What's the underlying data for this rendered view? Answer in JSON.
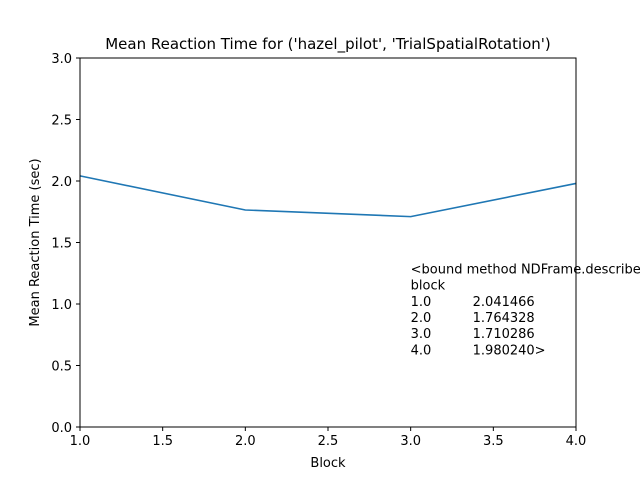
{
  "chart_data": {
    "type": "line",
    "title": "Mean Reaction Time for ('hazel_pilot', 'TrialSpatialRotation')",
    "xlabel": "Block",
    "ylabel": "Mean Reaction Time (sec)",
    "xlim": [
      1.0,
      4.0
    ],
    "ylim": [
      0.0,
      3.0
    ],
    "xticks": [
      "1.0",
      "1.5",
      "2.0",
      "2.5",
      "3.0",
      "3.5",
      "4.0"
    ],
    "yticks": [
      "0.0",
      "0.5",
      "1.0",
      "1.5",
      "2.0",
      "2.5",
      "3.0"
    ],
    "grid": false,
    "series": [
      {
        "x": [
          1.0,
          2.0,
          3.0,
          4.0
        ],
        "y": [
          2.041466,
          1.764328,
          1.710286,
          1.98024
        ],
        "color": "#1f77b4"
      }
    ],
    "annotation": {
      "x": 3.0,
      "y": 1.2,
      "lines": [
        {
          "left": "<bound method NDFrame.describe of",
          "right": ""
        },
        {
          "left": "block",
          "right": ""
        },
        {
          "left": "1.0",
          "right": "2.041466"
        },
        {
          "left": "2.0",
          "right": "1.764328"
        },
        {
          "left": "3.0",
          "right": "1.710286"
        },
        {
          "left": "4.0",
          "right": "1.980240>"
        }
      ]
    }
  }
}
